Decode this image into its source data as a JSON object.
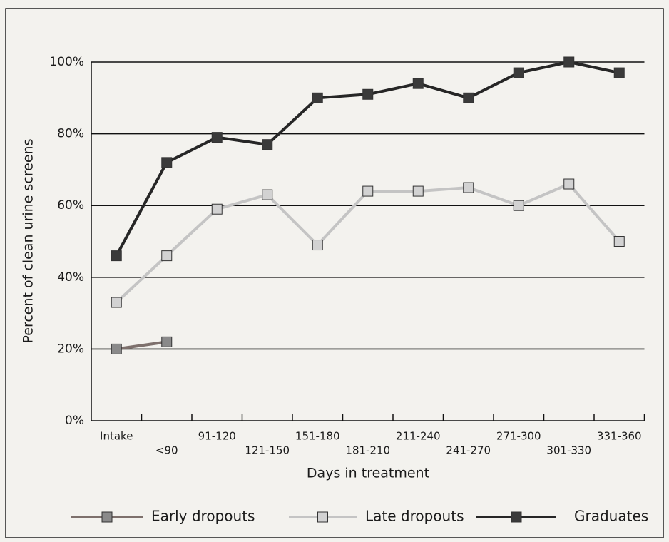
{
  "chart_data": {
    "type": "line",
    "xlabel": "Days in treatment",
    "ylabel": "Percent of clean urine screens",
    "categories": [
      "Intake",
      "<90",
      "91-120",
      "121-150",
      "151-180",
      "181-210",
      "211-240",
      "241-270",
      "271-300",
      "301-330",
      "331-360"
    ],
    "ylim": [
      0,
      100
    ],
    "yticks": [
      {
        "value": 0,
        "label": "0%"
      },
      {
        "value": 20,
        "label": "20%"
      },
      {
        "value": 40,
        "label": "40%"
      },
      {
        "value": 60,
        "label": "60%"
      },
      {
        "value": 80,
        "label": "80%"
      },
      {
        "value": 100,
        "label": "100%"
      }
    ],
    "grid": true,
    "series": [
      {
        "name": "Early dropouts",
        "color": "#7d706c",
        "marker_color": "#8a8a8a",
        "values": [
          20,
          22,
          null,
          null,
          null,
          null,
          null,
          null,
          null,
          null,
          null
        ]
      },
      {
        "name": "Late dropouts",
        "color": "#c4c4c4",
        "marker_color": "#d2d2d2",
        "values": [
          33,
          46,
          59,
          63,
          49,
          64,
          64,
          65,
          60,
          66,
          50
        ]
      },
      {
        "name": "Graduates",
        "color": "#262626",
        "marker_color": "#3a3a3a",
        "values": [
          46,
          72,
          79,
          77,
          90,
          91,
          94,
          90,
          97,
          100,
          97
        ]
      }
    ]
  }
}
